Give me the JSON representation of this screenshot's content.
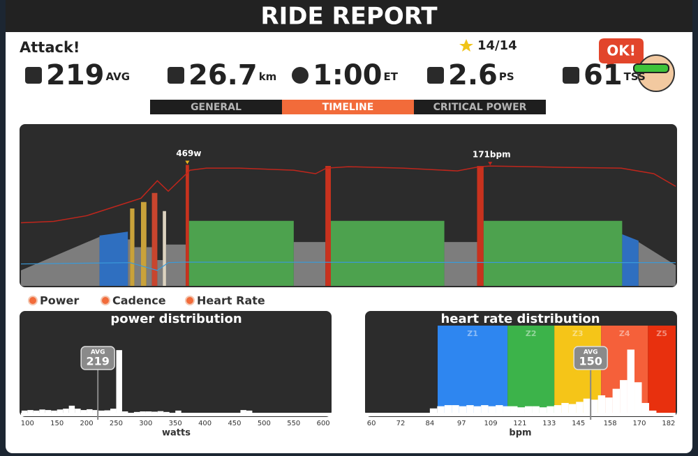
{
  "header": {
    "title": "RIDE REPORT"
  },
  "workout": {
    "name": "Attack!",
    "stars": "14/14"
  },
  "stats": [
    {
      "value": "219",
      "unit": "AVG"
    },
    {
      "value": "26.7",
      "unit": "km"
    },
    {
      "value": "1:00",
      "unit": "ET"
    },
    {
      "value": "2.6",
      "unit": "PS"
    },
    {
      "value": "61",
      "unit": "TSS"
    }
  ],
  "badge": "OK!",
  "tabs": [
    {
      "label": "GENERAL",
      "active": false
    },
    {
      "label": "TIMELINE",
      "active": true
    },
    {
      "label": "CRITICAL POWER",
      "active": false
    }
  ],
  "timeline": {
    "xlim": [
      0,
      60
    ],
    "power_ylim": [
      0,
      500
    ],
    "hr_ylim": [
      0,
      184
    ],
    "cadence_ylim": [
      0,
      500
    ],
    "power_segments": [
      {
        "start": 0,
        "end": 7.2,
        "from": 60,
        "to": 190,
        "color": "#7d7d7d"
      },
      {
        "start": 7.2,
        "end": 9.8,
        "from": 195,
        "to": 210,
        "color": "#2f6fc0"
      },
      {
        "start": 9.8,
        "end": 10.0,
        "from": 180,
        "to": 180,
        "color": "#7d7d7d"
      },
      {
        "start": 10.0,
        "end": 10.4,
        "from": 300,
        "to": 300,
        "color": "#c9a23a"
      },
      {
        "start": 10.4,
        "end": 11.0,
        "from": 150,
        "to": 150,
        "color": "#7d7d7d"
      },
      {
        "start": 11.0,
        "end": 11.5,
        "from": 325,
        "to": 325,
        "color": "#c9a23a"
      },
      {
        "start": 11.5,
        "end": 12.0,
        "from": 150,
        "to": 150,
        "color": "#7d7d7d"
      },
      {
        "start": 12.0,
        "end": 12.5,
        "from": 360,
        "to": 360,
        "color": "#c8452e"
      },
      {
        "start": 12.5,
        "end": 13.0,
        "from": 100,
        "to": 100,
        "color": "#7d7d7d"
      },
      {
        "start": 13.0,
        "end": 13.3,
        "from": 290,
        "to": 290,
        "color": "#ddd3c0"
      },
      {
        "start": 13.3,
        "end": 15.1,
        "from": 160,
        "to": 160,
        "color": "#7d7d7d"
      },
      {
        "start": 15.1,
        "end": 15.4,
        "from": 469,
        "to": 469,
        "color": "#c8321e"
      },
      {
        "start": 15.4,
        "end": 25.0,
        "from": 252,
        "to": 252,
        "color": "#4da24e"
      },
      {
        "start": 25.0,
        "end": 27.9,
        "from": 170,
        "to": 170,
        "color": "#7d7d7d"
      },
      {
        "start": 27.9,
        "end": 28.4,
        "from": 465,
        "to": 465,
        "color": "#c8321e"
      },
      {
        "start": 28.4,
        "end": 38.8,
        "from": 252,
        "to": 252,
        "color": "#4da24e"
      },
      {
        "start": 38.8,
        "end": 41.8,
        "from": 170,
        "to": 170,
        "color": "#7d7d7d"
      },
      {
        "start": 41.8,
        "end": 42.4,
        "from": 465,
        "to": 465,
        "color": "#c8321e"
      },
      {
        "start": 42.4,
        "end": 55.1,
        "from": 252,
        "to": 252,
        "color": "#4da24e"
      },
      {
        "start": 55.1,
        "end": 56.6,
        "from": 200,
        "to": 175,
        "color": "#2f6fc0"
      },
      {
        "start": 56.6,
        "end": 60,
        "from": 170,
        "to": 80,
        "color": "#7d7d7d"
      }
    ],
    "heart_rate": {
      "color": "#c0261c",
      "x": [
        0,
        3,
        6,
        9,
        11,
        12.5,
        13.5,
        14.5,
        15.5,
        17,
        20,
        25,
        27,
        28,
        30,
        35,
        40,
        42,
        43,
        50,
        55,
        58,
        60
      ],
      "values": [
        90,
        92,
        100,
        115,
        125,
        150,
        135,
        150,
        165,
        168,
        168,
        165,
        160,
        168,
        170,
        168,
        164,
        170,
        171,
        169,
        168,
        160,
        142
      ]
    },
    "cadence": {
      "color": "#3a9ad9",
      "x": [
        0,
        10,
        12.5,
        13.5,
        15,
        60
      ],
      "values": [
        85,
        90,
        60,
        90,
        92,
        90
      ]
    },
    "annotations": [
      {
        "label": "469w",
        "x": 15.25,
        "value": 469,
        "ylim": "power_ylim",
        "color": "#e8b41c"
      },
      {
        "label": "171bpm",
        "x": 43,
        "value": 171,
        "ylim": "hr_ylim",
        "color": "#c0261c"
      }
    ]
  },
  "legend": [
    {
      "name": "Power"
    },
    {
      "name": "Cadence"
    },
    {
      "name": "Heart Rate"
    }
  ],
  "power_distribution": {
    "title": "power distribution",
    "xlabel": "watts",
    "xlim": [
      89,
      614
    ],
    "ylim": [
      0,
      32
    ],
    "xticks": [
      100,
      150,
      200,
      250,
      300,
      350,
      400,
      450,
      500,
      550,
      600
    ],
    "bins": [
      90,
      100,
      110,
      120,
      130,
      140,
      150,
      160,
      170,
      180,
      190,
      200,
      210,
      220,
      230,
      240,
      250,
      260,
      270,
      280,
      290,
      300,
      310,
      320,
      330,
      340,
      350,
      360,
      370,
      380,
      390,
      400,
      410,
      420,
      430,
      440,
      450,
      460,
      470,
      480
    ],
    "values": [
      0.8,
      1,
      0.8,
      1.2,
      1,
      0.8,
      1.2,
      1.5,
      2.6,
      1.5,
      1,
      1.3,
      1,
      0.8,
      0.9,
      1.5,
      23,
      0.5,
      0,
      0.3,
      0.5,
      0.5,
      0.4,
      0.6,
      0.3,
      0,
      0.8,
      0,
      0,
      0,
      0,
      0,
      0,
      0,
      0,
      0,
      0,
      1,
      0.8
    ],
    "avg": {
      "label": "AVG",
      "value": 219
    }
  },
  "hr_distribution": {
    "title": "heart rate distribution",
    "xlabel": "bpm",
    "xlim": [
      57.4,
      184.9
    ],
    "ylim": [
      0,
      8
    ],
    "xticks": [
      60,
      72,
      84,
      97,
      109,
      121,
      133,
      145,
      158,
      170,
      182
    ],
    "zones": [
      {
        "name": "Z1",
        "from": 87.2,
        "to": 115.9,
        "color": "#2e86f0"
      },
      {
        "name": "Z2",
        "from": 115.9,
        "to": 135.1,
        "color": "#3cb34a"
      },
      {
        "name": "Z3",
        "from": 135.1,
        "to": 154.3,
        "color": "#f5c518"
      },
      {
        "name": "Z4",
        "from": 154.3,
        "to": 173.5,
        "color": "#f5603a"
      },
      {
        "name": "Z5",
        "from": 173.5,
        "to": 184.9,
        "color": "#e8300e"
      }
    ],
    "bins": [
      84,
      87,
      90,
      93,
      96,
      99,
      102,
      105,
      108,
      111,
      114,
      117,
      120,
      123,
      126,
      129,
      132,
      135,
      138,
      141,
      144,
      147,
      150,
      153,
      156,
      159,
      162,
      165,
      168,
      171,
      174,
      177,
      180,
      183
    ],
    "values": [
      0.4,
      0.6,
      0.7,
      0.7,
      0.6,
      0.7,
      0.6,
      0.7,
      0.6,
      0.7,
      0.6,
      0.6,
      0.5,
      0.6,
      0.6,
      0.5,
      0.6,
      0.7,
      0.9,
      0.8,
      1.0,
      1.3,
      1.2,
      1.6,
      1.4,
      2.2,
      3.0,
      5.8,
      2.8,
      0.9,
      0.2,
      0,
      0
    ],
    "avg": {
      "label": "AVG",
      "value": 150
    }
  }
}
